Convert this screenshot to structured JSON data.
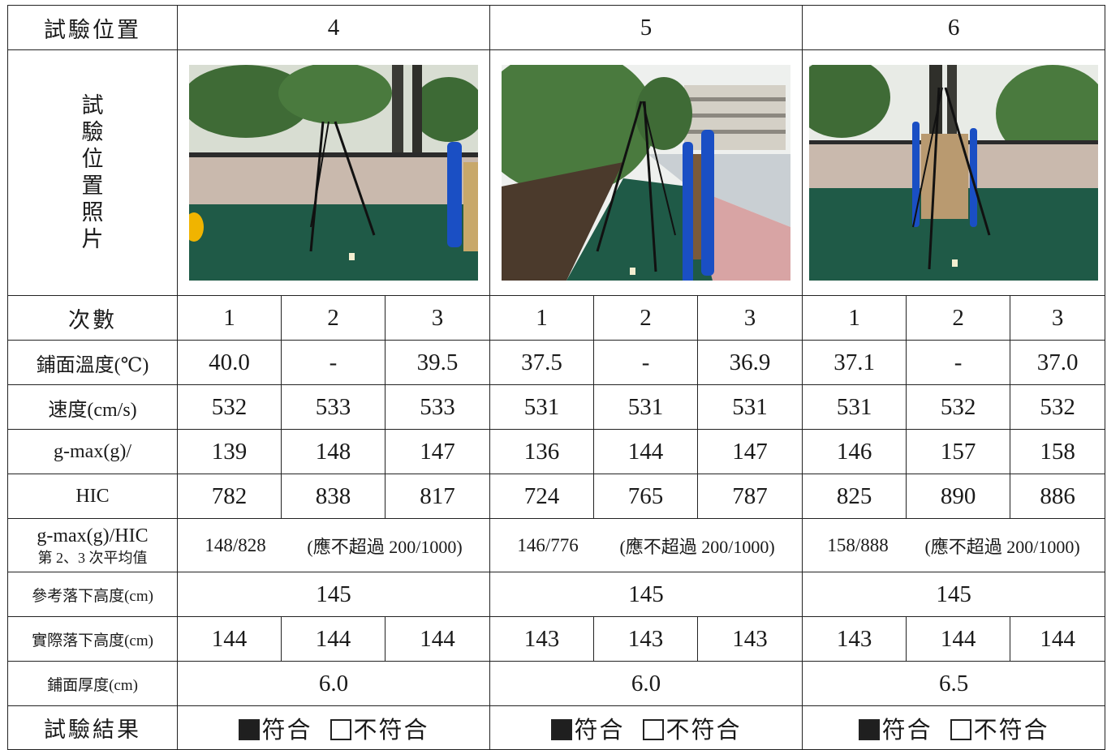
{
  "header": {
    "label": "試驗位置",
    "positions": [
      "4",
      "5",
      "6"
    ]
  },
  "photo_row": {
    "label": "試驗位置照片"
  },
  "trial_row": {
    "label": "次數",
    "trials": [
      "1",
      "2",
      "3",
      "1",
      "2",
      "3",
      "1",
      "2",
      "3"
    ]
  },
  "temp_row": {
    "label": "鋪面溫度(℃)",
    "values": [
      "40.0",
      "-",
      "39.5",
      "37.5",
      "-",
      "36.9",
      "37.1",
      "-",
      "37.0"
    ]
  },
  "speed_row": {
    "label": "速度(cm/s)",
    "values": [
      "532",
      "533",
      "533",
      "531",
      "531",
      "531",
      "531",
      "532",
      "532"
    ]
  },
  "gmax_row": {
    "label": "g-max(g)/",
    "values": [
      "139",
      "148",
      "147",
      "136",
      "144",
      "147",
      "146",
      "157",
      "158"
    ]
  },
  "hic_row": {
    "label": "HIC",
    "values": [
      "782",
      "838",
      "817",
      "724",
      "765",
      "787",
      "825",
      "890",
      "886"
    ]
  },
  "avg_row": {
    "label_line1": "g-max(g)/HIC",
    "label_line2": "第 2、3 次平均值",
    "averages": [
      "148/828",
      "146/776",
      "158/888"
    ],
    "limit_note": "(應不超過 200/1000)"
  },
  "ref_height_row": {
    "label": "參考落下高度(cm)",
    "values": [
      "145",
      "145",
      "145"
    ]
  },
  "actual_height_row": {
    "label": "實際落下高度(cm)",
    "values": [
      "144",
      "144",
      "144",
      "143",
      "143",
      "143",
      "143",
      "144",
      "144"
    ]
  },
  "thickness_row": {
    "label": "鋪面厚度(cm)",
    "values": [
      "6.0",
      "6.0",
      "6.5"
    ]
  },
  "result_row": {
    "label": "試驗結果",
    "pass_label": "符合",
    "fail_label": "不符合",
    "checked": [
      "pass",
      "pass",
      "pass"
    ]
  },
  "colors": {
    "grid": "#222222",
    "surface_green": "#1f5a47",
    "post_blue": "#1a4fc4"
  }
}
